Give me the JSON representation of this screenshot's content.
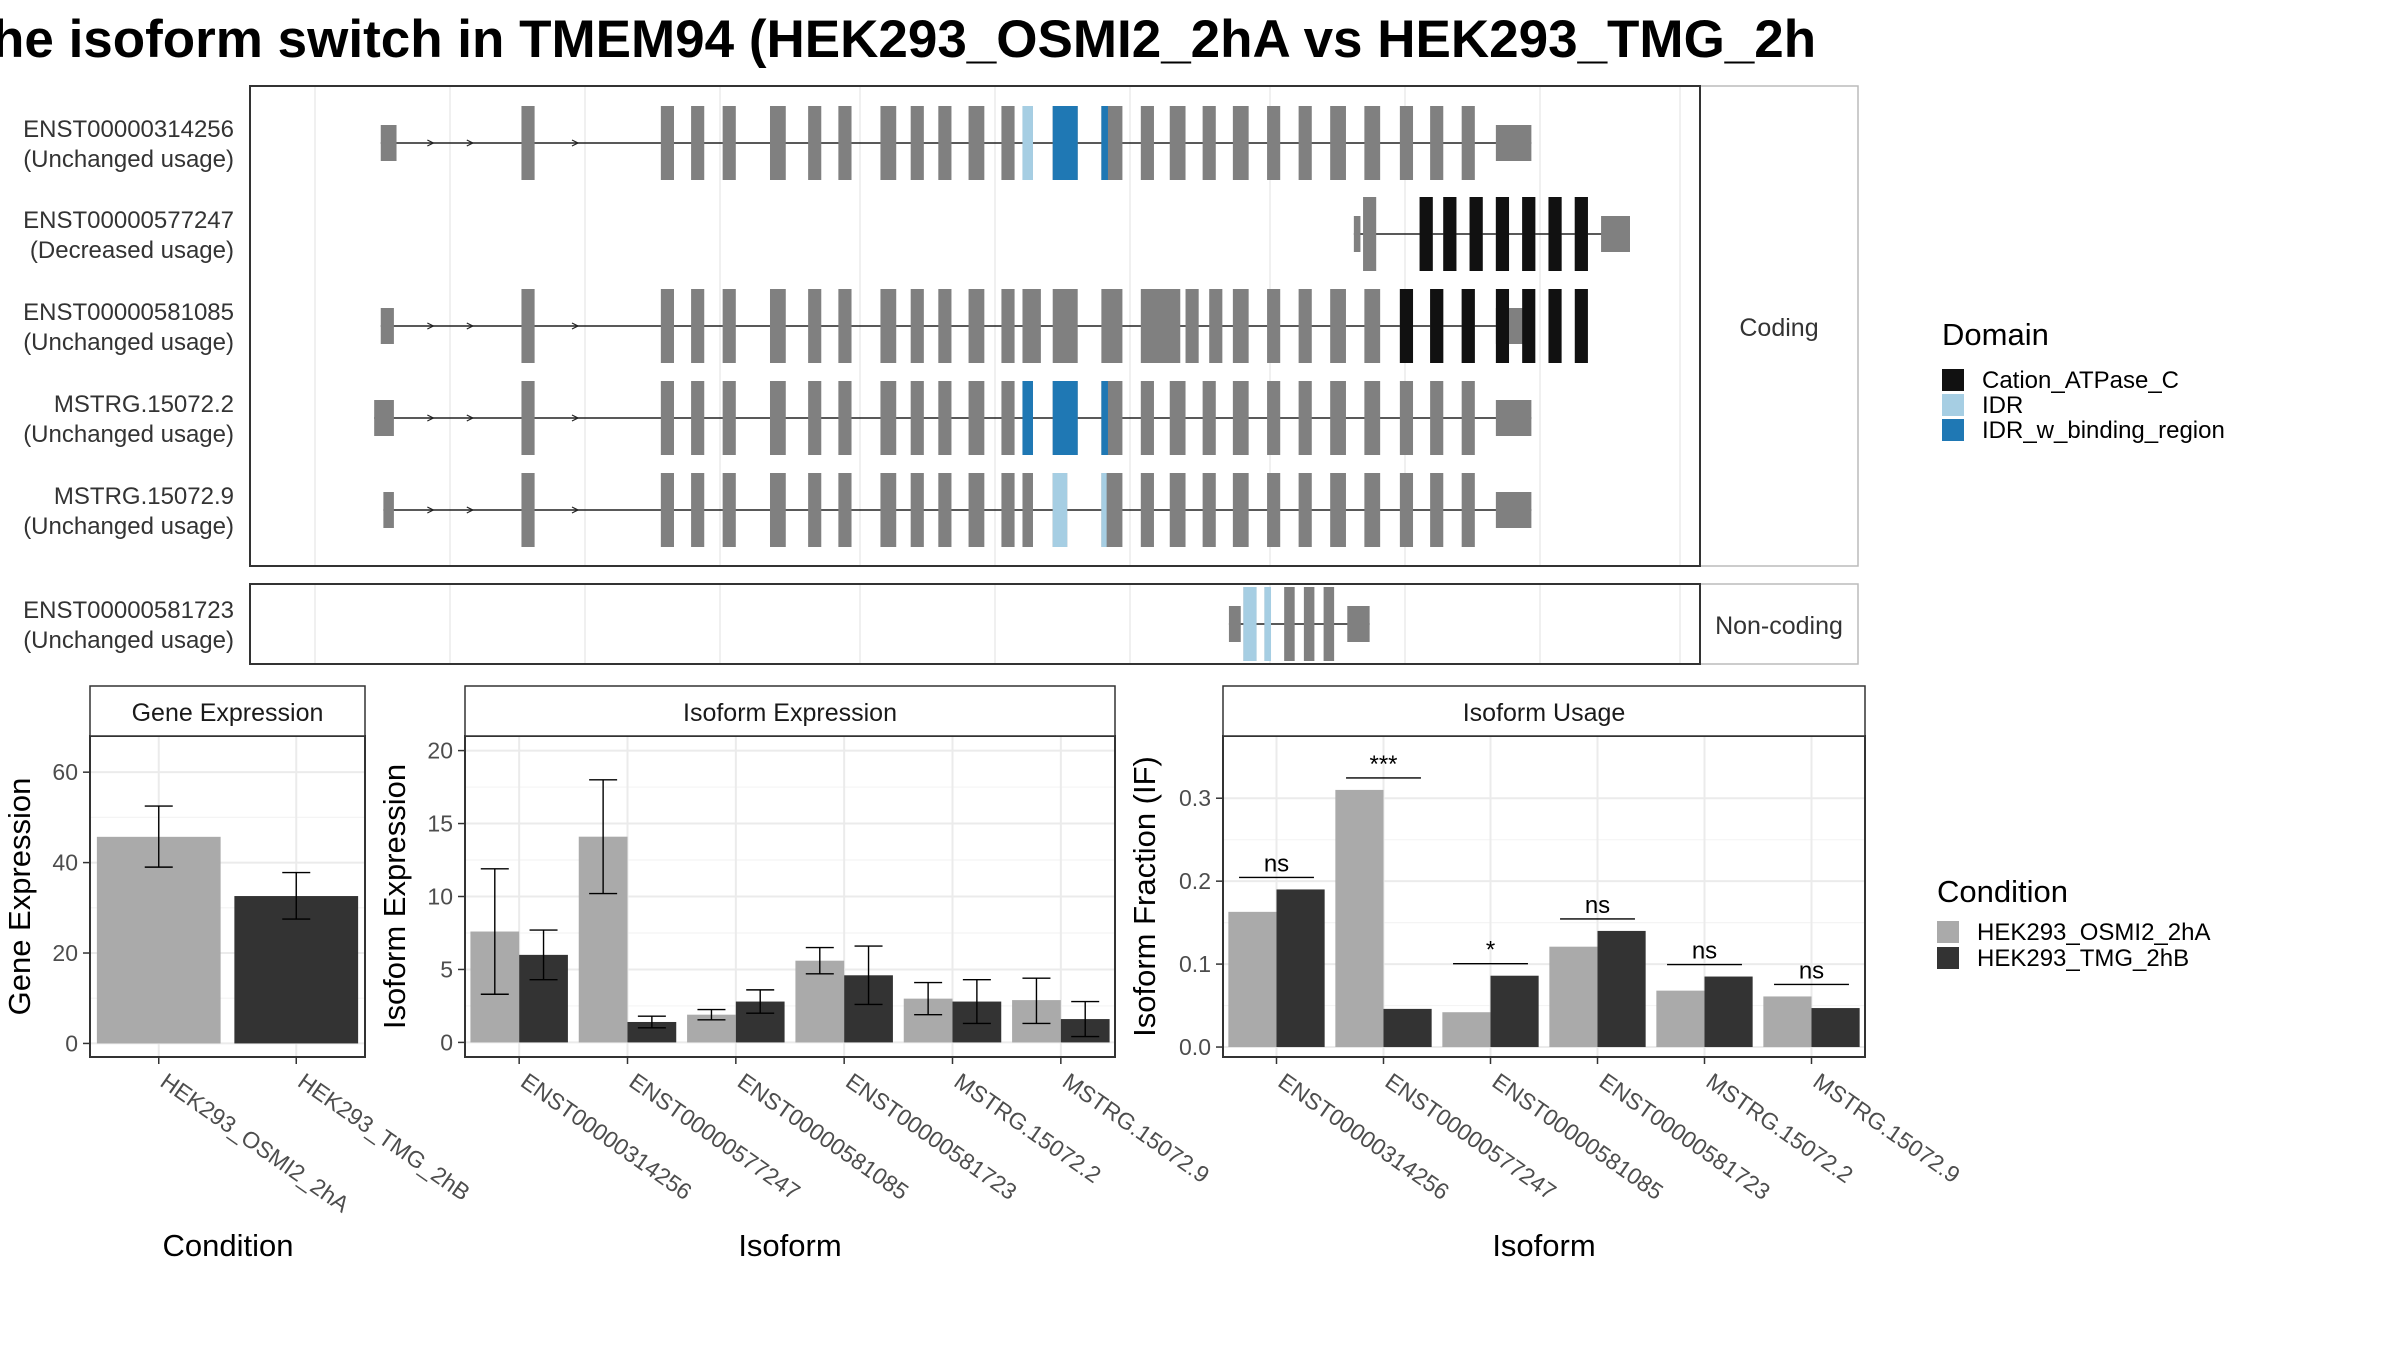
{
  "title": "he isoform switch in TMEM94 (HEK293_OSMI2_2hA vs HEK293_TMG_2h",
  "colors": {
    "exon": "#808080",
    "cation": "#111111",
    "idr": "#a6cee3",
    "idr_binding": "#1f78b4",
    "cond1": "#aaaaaa",
    "cond2": "#333333"
  },
  "structure": {
    "coding_label": "Coding",
    "noncoding_label": "Non-coding",
    "transcripts": [
      {
        "id": "ENST00000314256",
        "status": "(Unchanged usage)",
        "group": "coding",
        "exons": [
          [
            0.05,
            0.062
          ],
          [
            0.157,
            0.167
          ],
          [
            0.263,
            0.273
          ],
          [
            0.286,
            0.296
          ],
          [
            0.31,
            0.32
          ],
          [
            0.346,
            0.358
          ],
          [
            0.375,
            0.385
          ],
          [
            0.398,
            0.408
          ],
          [
            0.43,
            0.442
          ],
          [
            0.453,
            0.463
          ],
          [
            0.474,
            0.484
          ],
          [
            0.497,
            0.509
          ],
          [
            0.522,
            0.532
          ],
          [
            0.538,
            0.546
          ],
          [
            0.561,
            0.58
          ],
          [
            0.598,
            0.614
          ],
          [
            0.628,
            0.638
          ],
          [
            0.65,
            0.662
          ],
          [
            0.675,
            0.685
          ],
          [
            0.698,
            0.71
          ],
          [
            0.724,
            0.734
          ],
          [
            0.748,
            0.758
          ],
          [
            0.772,
            0.784
          ],
          [
            0.798,
            0.81
          ],
          [
            0.825,
            0.835
          ],
          [
            0.848,
            0.858
          ],
          [
            0.872,
            0.882
          ],
          [
            0.898,
            0.925
          ]
        ],
        "domains": [
          [
            "idr",
            0.538,
            0.546
          ],
          [
            "idr_binding",
            0.561,
            0.58
          ],
          [
            "idr_binding",
            0.598,
            0.603
          ]
        ],
        "arrows": [
          0.09,
          0.12,
          0.2
        ]
      },
      {
        "id": "ENST00000577247",
        "status": "(Decreased usage)",
        "group": "coding",
        "exons": [
          [
            0.79,
            0.795
          ],
          [
            0.797,
            0.807
          ],
          [
            0.84,
            0.85
          ],
          [
            0.858,
            0.868
          ],
          [
            0.878,
            0.888
          ],
          [
            0.898,
            0.908
          ],
          [
            0.918,
            0.928
          ],
          [
            0.938,
            0.948
          ],
          [
            0.958,
            0.968
          ],
          [
            0.978,
            1.0
          ]
        ],
        "domains": [
          [
            "cation",
            0.84,
            0.85
          ],
          [
            "cation",
            0.858,
            0.868
          ],
          [
            "cation",
            0.878,
            0.888
          ],
          [
            "cation",
            0.898,
            0.908
          ],
          [
            "cation",
            0.918,
            0.928
          ],
          [
            "cation",
            0.938,
            0.948
          ],
          [
            "cation",
            0.958,
            0.968
          ]
        ],
        "arrows": []
      },
      {
        "id": "ENST00000581085",
        "status": "(Unchanged usage)",
        "group": "coding",
        "exons": [
          [
            0.05,
            0.06
          ],
          [
            0.157,
            0.167
          ],
          [
            0.263,
            0.273
          ],
          [
            0.286,
            0.296
          ],
          [
            0.31,
            0.32
          ],
          [
            0.346,
            0.358
          ],
          [
            0.375,
            0.385
          ],
          [
            0.398,
            0.408
          ],
          [
            0.43,
            0.442
          ],
          [
            0.453,
            0.463
          ],
          [
            0.474,
            0.484
          ],
          [
            0.497,
            0.509
          ],
          [
            0.522,
            0.532
          ],
          [
            0.538,
            0.552
          ],
          [
            0.561,
            0.58
          ],
          [
            0.598,
            0.614
          ],
          [
            0.628,
            0.658
          ],
          [
            0.662,
            0.672
          ],
          [
            0.68,
            0.69
          ],
          [
            0.698,
            0.71
          ],
          [
            0.724,
            0.734
          ],
          [
            0.748,
            0.758
          ],
          [
            0.772,
            0.784
          ],
          [
            0.798,
            0.81
          ],
          [
            0.825,
            0.835
          ],
          [
            0.848,
            0.858
          ],
          [
            0.872,
            0.882
          ],
          [
            0.898,
            0.925
          ]
        ],
        "domains": [
          [
            "cation",
            0.825,
            0.835
          ],
          [
            "cation",
            0.848,
            0.858
          ],
          [
            "cation",
            0.872,
            0.882
          ],
          [
            "cation",
            0.898,
            0.908
          ],
          [
            "cation",
            0.918,
            0.928
          ],
          [
            "cation",
            0.938,
            0.948
          ],
          [
            "cation",
            0.958,
            0.968
          ]
        ],
        "arrows": [
          0.09,
          0.12,
          0.2
        ]
      },
      {
        "id": "MSTRG.15072.2",
        "status": "(Unchanged usage)",
        "group": "coding",
        "exons": [
          [
            0.045,
            0.06
          ],
          [
            0.157,
            0.167
          ],
          [
            0.263,
            0.273
          ],
          [
            0.286,
            0.296
          ],
          [
            0.31,
            0.32
          ],
          [
            0.346,
            0.358
          ],
          [
            0.375,
            0.385
          ],
          [
            0.398,
            0.408
          ],
          [
            0.43,
            0.442
          ],
          [
            0.453,
            0.463
          ],
          [
            0.474,
            0.484
          ],
          [
            0.497,
            0.509
          ],
          [
            0.522,
            0.532
          ],
          [
            0.538,
            0.546
          ],
          [
            0.561,
            0.58
          ],
          [
            0.598,
            0.614
          ],
          [
            0.628,
            0.638
          ],
          [
            0.65,
            0.662
          ],
          [
            0.675,
            0.685
          ],
          [
            0.698,
            0.71
          ],
          [
            0.724,
            0.734
          ],
          [
            0.748,
            0.758
          ],
          [
            0.772,
            0.784
          ],
          [
            0.798,
            0.81
          ],
          [
            0.825,
            0.835
          ],
          [
            0.848,
            0.858
          ],
          [
            0.872,
            0.882
          ],
          [
            0.898,
            0.925
          ]
        ],
        "domains": [
          [
            "idr_binding",
            0.538,
            0.546
          ],
          [
            "idr_binding",
            0.561,
            0.58
          ],
          [
            "idr_binding",
            0.598,
            0.603
          ]
        ],
        "arrows": [
          0.09,
          0.12,
          0.2
        ]
      },
      {
        "id": "MSTRG.15072.9",
        "status": "(Unchanged usage)",
        "group": "coding",
        "exons": [
          [
            0.052,
            0.06
          ],
          [
            0.157,
            0.167
          ],
          [
            0.263,
            0.273
          ],
          [
            0.286,
            0.296
          ],
          [
            0.31,
            0.32
          ],
          [
            0.346,
            0.358
          ],
          [
            0.375,
            0.385
          ],
          [
            0.398,
            0.408
          ],
          [
            0.43,
            0.442
          ],
          [
            0.453,
            0.463
          ],
          [
            0.474,
            0.484
          ],
          [
            0.497,
            0.509
          ],
          [
            0.522,
            0.532
          ],
          [
            0.538,
            0.546
          ],
          [
            0.561,
            0.572
          ],
          [
            0.598,
            0.614
          ],
          [
            0.628,
            0.638
          ],
          [
            0.65,
            0.662
          ],
          [
            0.675,
            0.685
          ],
          [
            0.698,
            0.71
          ],
          [
            0.724,
            0.734
          ],
          [
            0.748,
            0.758
          ],
          [
            0.772,
            0.784
          ],
          [
            0.798,
            0.81
          ],
          [
            0.825,
            0.835
          ],
          [
            0.848,
            0.858
          ],
          [
            0.872,
            0.882
          ],
          [
            0.898,
            0.925
          ]
        ],
        "domains": [
          [
            "idr",
            0.561,
            0.572
          ],
          [
            "idr",
            0.598,
            0.602
          ]
        ],
        "arrows": [
          0.09,
          0.12,
          0.2
        ]
      },
      {
        "id": "ENST00000581723",
        "status": "(Unchanged usage)",
        "group": "noncoding",
        "exons": [
          [
            0.695,
            0.704
          ],
          [
            0.706,
            0.716
          ],
          [
            0.722,
            0.727
          ],
          [
            0.737,
            0.745
          ],
          [
            0.752,
            0.76
          ],
          [
            0.767,
            0.775
          ],
          [
            0.785,
            0.802
          ]
        ],
        "domains": [
          [
            "idr",
            0.706,
            0.716
          ],
          [
            "idr",
            0.722,
            0.727
          ]
        ],
        "arrows": []
      }
    ]
  },
  "legend_domain": {
    "title": "Domain",
    "items": [
      {
        "key": "cation",
        "label": "Cation_ATPase_C"
      },
      {
        "key": "idr",
        "label": "IDR"
      },
      {
        "key": "idr_binding",
        "label": "IDR_w_binding_region"
      }
    ]
  },
  "legend_condition": {
    "title": "Condition",
    "items": [
      {
        "key": "cond1",
        "label": "HEK293_OSMI2_2hA"
      },
      {
        "key": "cond2",
        "label": "HEK293_TMG_2hB"
      }
    ]
  },
  "chart_data": [
    {
      "type": "bar",
      "title": "Gene Expression",
      "xlabel": "Condition",
      "ylabel": "Gene Expression",
      "categories": [
        "HEK293_OSMI2_2hA",
        "HEK293_TMG_2hB"
      ],
      "values": [
        45.7,
        32.6
      ],
      "err_low": [
        39.0,
        27.5
      ],
      "err_high": [
        52.5,
        37.8
      ],
      "ylim": [
        -3,
        68
      ],
      "yticks": [
        0,
        20,
        40,
        60
      ],
      "grid": true
    },
    {
      "type": "bar",
      "title": "Isoform Expression",
      "xlabel": "Isoform",
      "ylabel": "Isoform Expression",
      "categories": [
        "ENST00000314256",
        "ENST00000577247",
        "ENST00000581085",
        "ENST00000581723",
        "MSTRG.15072.2",
        "MSTRG.15072.9"
      ],
      "series": [
        {
          "name": "HEK293_OSMI2_2hA",
          "values": [
            7.6,
            14.1,
            1.9,
            5.6,
            3.0,
            2.9
          ],
          "err_low": [
            3.3,
            10.2,
            1.55,
            4.7,
            1.9,
            1.3
          ],
          "err_high": [
            11.9,
            18.0,
            2.25,
            6.5,
            4.1,
            4.4
          ]
        },
        {
          "name": "HEK293_TMG_2hB",
          "values": [
            6.0,
            1.4,
            2.8,
            4.6,
            2.8,
            1.6
          ],
          "err_low": [
            4.3,
            1.0,
            2.0,
            2.6,
            1.3,
            0.4
          ],
          "err_high": [
            7.7,
            1.8,
            3.6,
            6.6,
            4.3,
            2.8
          ]
        }
      ],
      "ylim": [
        -1,
        21
      ],
      "yticks": [
        0,
        5,
        10,
        15,
        20
      ],
      "grid": true
    },
    {
      "type": "bar",
      "title": "Isoform Usage",
      "xlabel": "Isoform",
      "ylabel": "Isoform Fraction (IF)",
      "categories": [
        "ENST00000314256",
        "ENST00000577247",
        "ENST00000581085",
        "ENST00000581723",
        "MSTRG.15072.2",
        "MSTRG.15072.9"
      ],
      "series": [
        {
          "name": "HEK293_OSMI2_2hA",
          "values": [
            0.163,
            0.31,
            0.042,
            0.121,
            0.068,
            0.061
          ]
        },
        {
          "name": "HEK293_TMG_2hB",
          "values": [
            0.19,
            0.046,
            0.086,
            0.14,
            0.085,
            0.047
          ]
        }
      ],
      "significance": [
        "ns",
        "***",
        "*",
        "ns",
        "ns",
        "ns"
      ],
      "ylim": [
        -0.012,
        0.375
      ],
      "yticks": [
        0.0,
        0.1,
        0.2,
        0.3
      ],
      "yticklabels": [
        "0.0",
        "0.1",
        "0.2",
        "0.3"
      ],
      "grid": true
    }
  ]
}
